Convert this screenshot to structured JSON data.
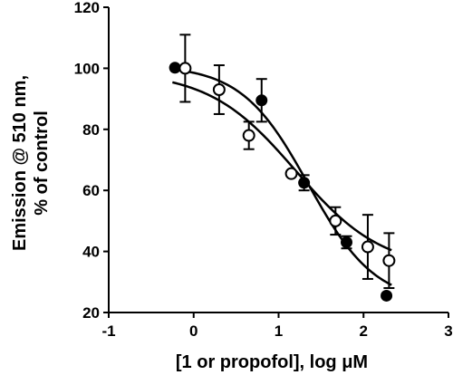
{
  "chart_data": {
    "type": "scatter",
    "title": "",
    "xlabel": "[1 or propofol], log μM",
    "ylabel_line1": "Emission @ 510 nm,",
    "ylabel_line2": "% of control",
    "xlim": [
      -1,
      3
    ],
    "ylim": [
      20,
      120
    ],
    "x_ticks": [
      -1,
      0,
      1,
      2,
      3
    ],
    "y_ticks": [
      20,
      40,
      60,
      80,
      100,
      120
    ],
    "grid": false,
    "legend": "none",
    "series": [
      {
        "marker": "filled-circle",
        "color": "#000000",
        "points": [
          {
            "x": -0.22,
            "y": 100.2,
            "err": 0
          },
          {
            "x": 0.8,
            "y": 89.5,
            "err": 7
          },
          {
            "x": 1.3,
            "y": 62.5,
            "err": 2.5
          },
          {
            "x": 1.8,
            "y": 43.0,
            "err": 2
          },
          {
            "x": 2.27,
            "y": 25.5,
            "err": 0
          }
        ],
        "fit": {
          "top": 101,
          "bottom": 23,
          "logIC50": 1.35,
          "hill": 1.1
        }
      },
      {
        "marker": "open-circle",
        "color": "#000000",
        "points": [
          {
            "x": -0.1,
            "y": 100.0,
            "err": 11
          },
          {
            "x": 0.3,
            "y": 93.0,
            "err": 8
          },
          {
            "x": 0.65,
            "y": 78.0,
            "err": 4.5
          },
          {
            "x": 1.15,
            "y": 65.5,
            "err": 0
          },
          {
            "x": 1.67,
            "y": 50.0,
            "err": 4.5
          },
          {
            "x": 2.05,
            "y": 41.5,
            "err": 10.5
          },
          {
            "x": 2.3,
            "y": 37.0,
            "err": 9
          }
        ],
        "fit": {
          "top": 99,
          "bottom": 34,
          "logIC50": 1.2,
          "hill": 0.85
        }
      }
    ]
  }
}
